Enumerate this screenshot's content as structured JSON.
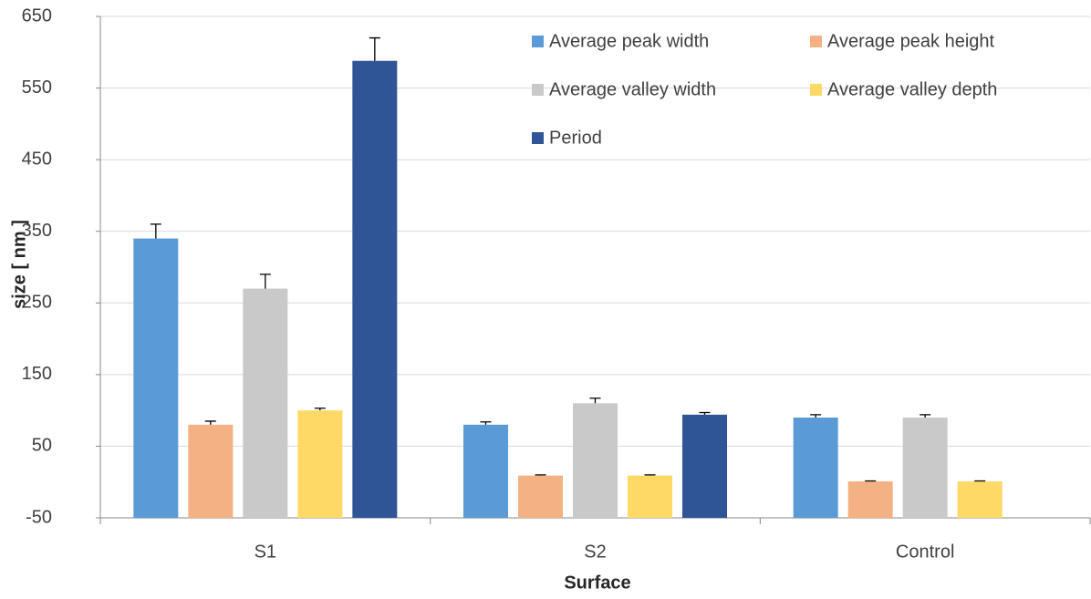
{
  "chart_data": {
    "type": "bar",
    "x_label": "Surface",
    "y_label": "size [ nm ]",
    "categories": [
      "S1",
      "S2",
      "Control"
    ],
    "series": [
      {
        "name": "Average peak width",
        "color": "#5b9bd5",
        "values": [
          340,
          80,
          90
        ],
        "errors": [
          20,
          4,
          4
        ]
      },
      {
        "name": "Average peak height",
        "color": "#f4b183",
        "values": [
          80,
          9,
          1
        ],
        "errors": [
          5,
          1,
          0.5
        ]
      },
      {
        "name": "Average valley width",
        "color": "#c9c9c9",
        "values": [
          270,
          110,
          90
        ],
        "errors": [
          20,
          7,
          4
        ]
      },
      {
        "name": "Average valley depth",
        "color": "#ffd966",
        "values": [
          100,
          9,
          1
        ],
        "errors": [
          3,
          1,
          0.5
        ]
      },
      {
        "name": "Period",
        "color": "#2f5597",
        "values": [
          588,
          94,
          null
        ],
        "errors": [
          32,
          3,
          null
        ]
      }
    ],
    "ylim": [
      -50,
      650
    ],
    "yticks": [
      -50,
      50,
      150,
      250,
      350,
      450,
      550,
      650
    ],
    "grid": true,
    "legend": "top-right"
  }
}
